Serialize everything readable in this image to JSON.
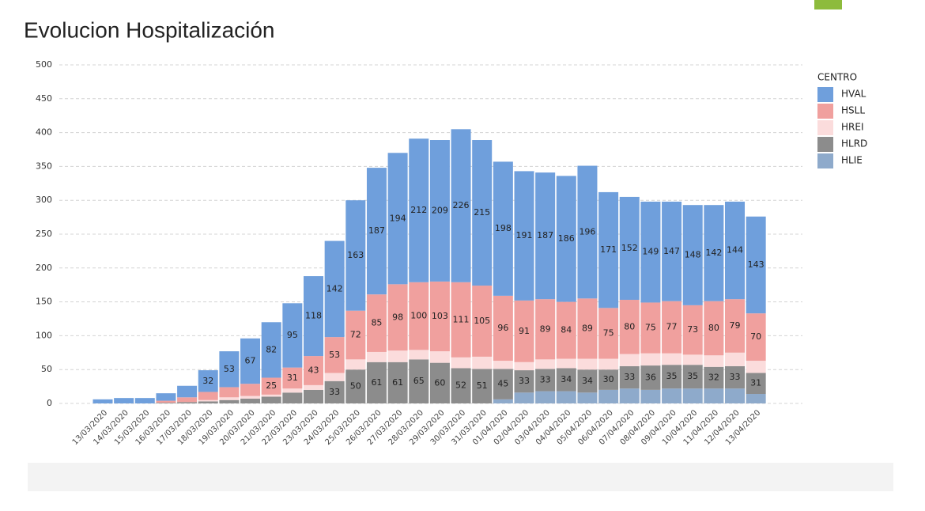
{
  "chart_data": {
    "type": "stacked_bar",
    "title": "Evolucion Hospitalización",
    "categories": [
      "13/03/2020",
      "14/03/2020",
      "15/03/2020",
      "16/03/2020",
      "17/03/2020",
      "18/03/2020",
      "19/03/2020",
      "20/03/2020",
      "21/03/2020",
      "22/03/2020",
      "23/03/2020",
      "24/03/2020",
      "25/03/2020",
      "26/03/2020",
      "27/03/2020",
      "28/03/2020",
      "29/03/2020",
      "30/03/2020",
      "31/03/2020",
      "01/04/2020",
      "02/04/2020",
      "03/04/2020",
      "04/04/2020",
      "05/04/2020",
      "06/04/2020",
      "07/04/2020",
      "08/04/2020",
      "09/04/2020",
      "10/04/2020",
      "11/04/2020",
      "12/04/2020",
      "13/04/2020"
    ],
    "legend_title": "CENTRO",
    "series": [
      {
        "name": "HVAL",
        "color": "#6f9fdc",
        "values": [
          6,
          8,
          8,
          11,
          17,
          32,
          53,
          67,
          82,
          95,
          118,
          142,
          163,
          187,
          194,
          212,
          209,
          226,
          215,
          198,
          191,
          187,
          186,
          196,
          171,
          152,
          149,
          147,
          148,
          142,
          144,
          143
        ]
      },
      {
        "name": "HSLL",
        "color": "#f0a09e",
        "values": [
          0,
          0,
          0,
          3,
          7,
          12,
          15,
          18,
          25,
          31,
          43,
          53,
          72,
          85,
          98,
          100,
          103,
          111,
          105,
          96,
          91,
          89,
          84,
          89,
          75,
          80,
          75,
          77,
          73,
          80,
          79,
          70
        ]
      },
      {
        "name": "HREI",
        "color": "#fbdcdc",
        "values": [
          0,
          0,
          0,
          0,
          0,
          2,
          4,
          4,
          3,
          6,
          7,
          12,
          15,
          15,
          17,
          14,
          17,
          16,
          18,
          12,
          12,
          14,
          14,
          16,
          16,
          18,
          18,
          17,
          15,
          17,
          20,
          18
        ]
      },
      {
        "name": "HLRD",
        "color": "#8c8c8c",
        "values": [
          0,
          0,
          0,
          1,
          2,
          3,
          5,
          7,
          10,
          16,
          20,
          33,
          50,
          61,
          61,
          65,
          60,
          52,
          51,
          45,
          33,
          33,
          34,
          34,
          30,
          33,
          36,
          35,
          35,
          32,
          33,
          31
        ]
      },
      {
        "name": "HLIE",
        "color": "#8eaacb",
        "values": [
          0,
          0,
          0,
          0,
          0,
          0,
          0,
          0,
          0,
          0,
          0,
          0,
          0,
          0,
          0,
          0,
          0,
          0,
          0,
          6,
          16,
          18,
          18,
          16,
          20,
          22,
          20,
          22,
          22,
          22,
          22,
          14
        ]
      }
    ],
    "stack_order": [
      "HLIE",
      "HLRD",
      "HREI",
      "HSLL",
      "HVAL"
    ],
    "data_labels_min": 25,
    "ylim": [
      0,
      500
    ],
    "yticks": [
      0,
      50,
      100,
      150,
      200,
      250,
      300,
      350,
      400,
      450,
      500
    ],
    "grid": true
  }
}
